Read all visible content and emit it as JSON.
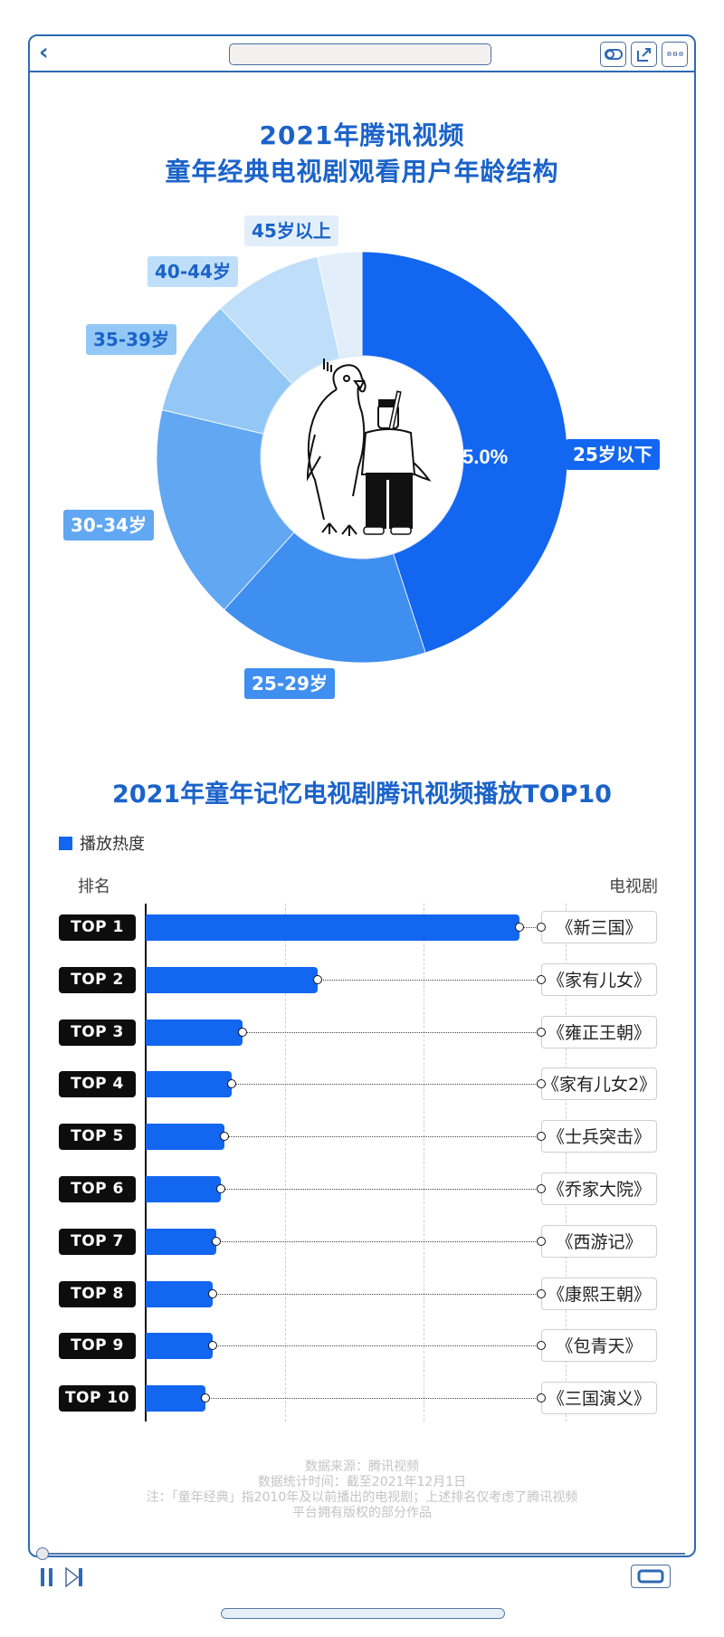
{
  "window": {
    "back_icon": "chevron-left-icon",
    "url_bar_value": "",
    "toolbar_icons": [
      "toggle-icon",
      "share-external-icon",
      "more-dots-icon"
    ]
  },
  "donut": {
    "title_line1": "2021年腾讯视频",
    "title_line2": "童年经典电视剧观看用户年龄结构",
    "center_percent_label": "45.0%",
    "center_illustration": "bird-and-boy-illustration",
    "labels": {
      "under25": "25岁以下",
      "25_29": "25-29岁",
      "30_34": "30-34岁",
      "35_39": "35-39岁",
      "40_44": "40-44岁",
      "45plus": "45岁以上"
    }
  },
  "bar": {
    "title": "2021年童年记忆电视剧腾讯视频播放TOP10",
    "legend": "播放热度",
    "axis_left": "排名",
    "axis_right": "电视剧",
    "rows": [
      {
        "rank": "TOP 1",
        "name": "《新三国》"
      },
      {
        "rank": "TOP 2",
        "name": "《家有儿女》"
      },
      {
        "rank": "TOP 3",
        "name": "《雍正王朝》"
      },
      {
        "rank": "TOP 4",
        "name": "《家有儿女2》"
      },
      {
        "rank": "TOP 5",
        "name": "《士兵突击》"
      },
      {
        "rank": "TOP 6",
        "name": "《乔家大院》"
      },
      {
        "rank": "TOP 7",
        "name": "《西游记》"
      },
      {
        "rank": "TOP 8",
        "name": "《康熙王朝》"
      },
      {
        "rank": "TOP 9",
        "name": "《包青天》"
      },
      {
        "rank": "TOP 10",
        "name": "《三国演义》"
      }
    ]
  },
  "footer": {
    "line1": "数据来源：腾讯视频",
    "line2": "数据统计时间：截至2021年12月1日",
    "line3": "注：「童年经典」指2010年及以前播出的电视剧；上述排名仅考虑了腾讯视频",
    "line4": "平台拥有版权的部分作品"
  },
  "player": {
    "pause_icon": "pause-icon",
    "next_icon": "skip-next-icon",
    "fullscreen_icon": "fullscreen-icon",
    "progress_percent": 0
  },
  "colors": {
    "accent": "#1266f0",
    "title": "#1b63c9",
    "frame": "#2e6ab3"
  },
  "chart_data": [
    {
      "type": "pie",
      "title": "2021年腾讯视频 童年经典电视剧观看用户年龄结构",
      "categories": [
        "25岁以下",
        "25-29岁",
        "30-34岁",
        "35-39岁",
        "40-44岁",
        "45岁以上"
      ],
      "values": [
        45.0,
        16.7,
        17.0,
        9.2,
        8.6,
        3.5
      ],
      "labeled_values": {
        "25岁以下": 45.0
      },
      "colors": [
        "#1266f0",
        "#3f8ff0",
        "#62a7f2",
        "#93c8f6",
        "#bfdef9",
        "#e2effb"
      ],
      "donut": true,
      "unit": "%"
    },
    {
      "type": "bar",
      "orientation": "horizontal",
      "title": "2021年童年记忆电视剧腾讯视频播放TOP10",
      "legend": [
        "播放热度"
      ],
      "xlabel": "",
      "ylabel_left": "排名",
      "ylabel_right": "电视剧",
      "categories": [
        "《新三国》",
        "《家有儿女》",
        "《雍正王朝》",
        "《家有儿女2》",
        "《士兵突击》",
        "《乔家大院》",
        "《西游记》",
        "《康熙王朝》",
        "《包青天》",
        "《三国演义》"
      ],
      "ranks": [
        "TOP 1",
        "TOP 2",
        "TOP 3",
        "TOP 4",
        "TOP 5",
        "TOP 6",
        "TOP 7",
        "TOP 8",
        "TOP 9",
        "TOP 10"
      ],
      "values": [
        100,
        46,
        26,
        23,
        21,
        20,
        19,
        18,
        18,
        16
      ],
      "value_note": "relative bar length, no axis values shown",
      "grid": true
    }
  ]
}
